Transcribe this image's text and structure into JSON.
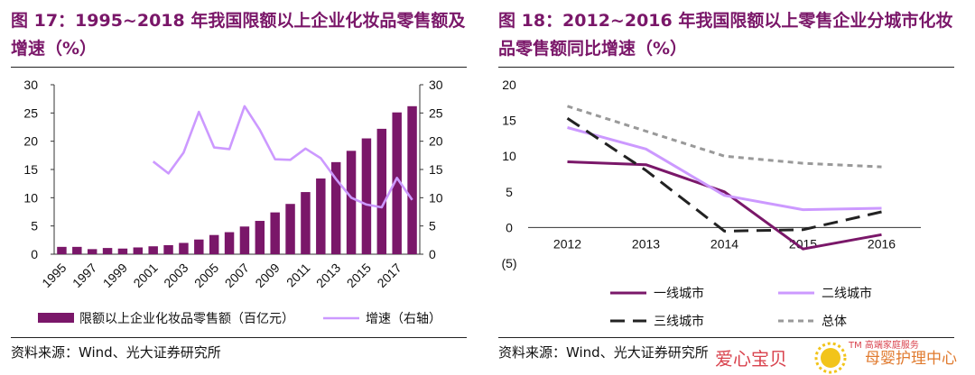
{
  "left": {
    "title": "图 17：1995~2018 年我国限额以上企业化妆品零售额及增速（%）",
    "source": "资料来源：Wind、光大证券研究所"
  },
  "right": {
    "title": "图 18：2012~2016 年我国限额以上零售企业分城市化妆品零售额同比增速（%）",
    "source": "资料来源：Wind、光大证券研究所"
  },
  "chart_data": [
    {
      "type": "bar",
      "title": "图 17：1995~2018 年我国限额以上企业化妆品零售额及增速（%）",
      "categories": [
        "1995",
        "1996",
        "1997",
        "1998",
        "1999",
        "2000",
        "2001",
        "2002",
        "2003",
        "2004",
        "2005",
        "2006",
        "2007",
        "2008",
        "2009",
        "2010",
        "2011",
        "2012",
        "2013",
        "2014",
        "2015",
        "2016",
        "2017",
        "2018"
      ],
      "x_tick_labels": [
        "1995",
        "1997",
        "1999",
        "2001",
        "2003",
        "2005",
        "2007",
        "2009",
        "2011",
        "2013",
        "2015",
        "2017"
      ],
      "y_ticks": [
        "0",
        "5",
        "10",
        "15",
        "20",
        "25",
        "30"
      ],
      "y2_ticks": [
        "0",
        "5",
        "10",
        "15",
        "20",
        "25",
        "30"
      ],
      "ylim": [
        0,
        30
      ],
      "y2lim": [
        0,
        30
      ],
      "legend_position": "bottom",
      "series": [
        {
          "name": "限额以上企业化妆品零售额（百亿元）",
          "type": "bar",
          "axis": "left",
          "color": "#7a1769",
          "values": [
            1.3,
            1.3,
            0.9,
            1.1,
            1.0,
            1.2,
            1.4,
            1.6,
            2.0,
            2.6,
            3.4,
            3.9,
            4.9,
            5.9,
            7.4,
            8.9,
            11.0,
            13.4,
            16.3,
            18.3,
            20.5,
            22.2,
            25.1,
            26.2
          ]
        },
        {
          "name": "增速（右轴）",
          "type": "line",
          "axis": "right",
          "color": "#cc99ff",
          "values": [
            null,
            null,
            null,
            null,
            null,
            null,
            16.4,
            14.3,
            18.0,
            25.2,
            18.9,
            18.6,
            26.2,
            22.0,
            16.8,
            16.7,
            18.7,
            17.0,
            13.3,
            10.0,
            8.8,
            8.3,
            13.5,
            9.6
          ]
        }
      ]
    },
    {
      "type": "line",
      "title": "图 18：2012~2016 年我国限额以上零售企业分城市化妆品零售额同比增速（%）",
      "x": [
        "2012",
        "2013",
        "2014",
        "2015",
        "2016"
      ],
      "y_ticks": [
        "20",
        "15",
        "10",
        "5",
        "0",
        "(5)"
      ],
      "ylim": [
        -5,
        20
      ],
      "legend_position": "bottom",
      "series": [
        {
          "name": "一线城市",
          "color": "#7a1769",
          "dash": "solid",
          "values": [
            9.2,
            8.8,
            5.0,
            -3.0,
            -1.0
          ]
        },
        {
          "name": "二线城市",
          "color": "#cc99ff",
          "dash": "solid",
          "values": [
            14.0,
            11.0,
            4.5,
            2.5,
            2.7
          ]
        },
        {
          "name": "三线城市",
          "color": "#222222",
          "dash": "long",
          "values": [
            15.3,
            8.0,
            -0.5,
            -0.3,
            2.2
          ]
        },
        {
          "name": "总体",
          "color": "#999999",
          "dash": "short",
          "values": [
            17.0,
            13.5,
            10.0,
            9.0,
            8.5
          ]
        }
      ]
    }
  ],
  "watermark": {
    "left_text": "爱心宝贝",
    "brand_small": "TM 高端家庭服务",
    "right_text": "母婴护理中心"
  }
}
